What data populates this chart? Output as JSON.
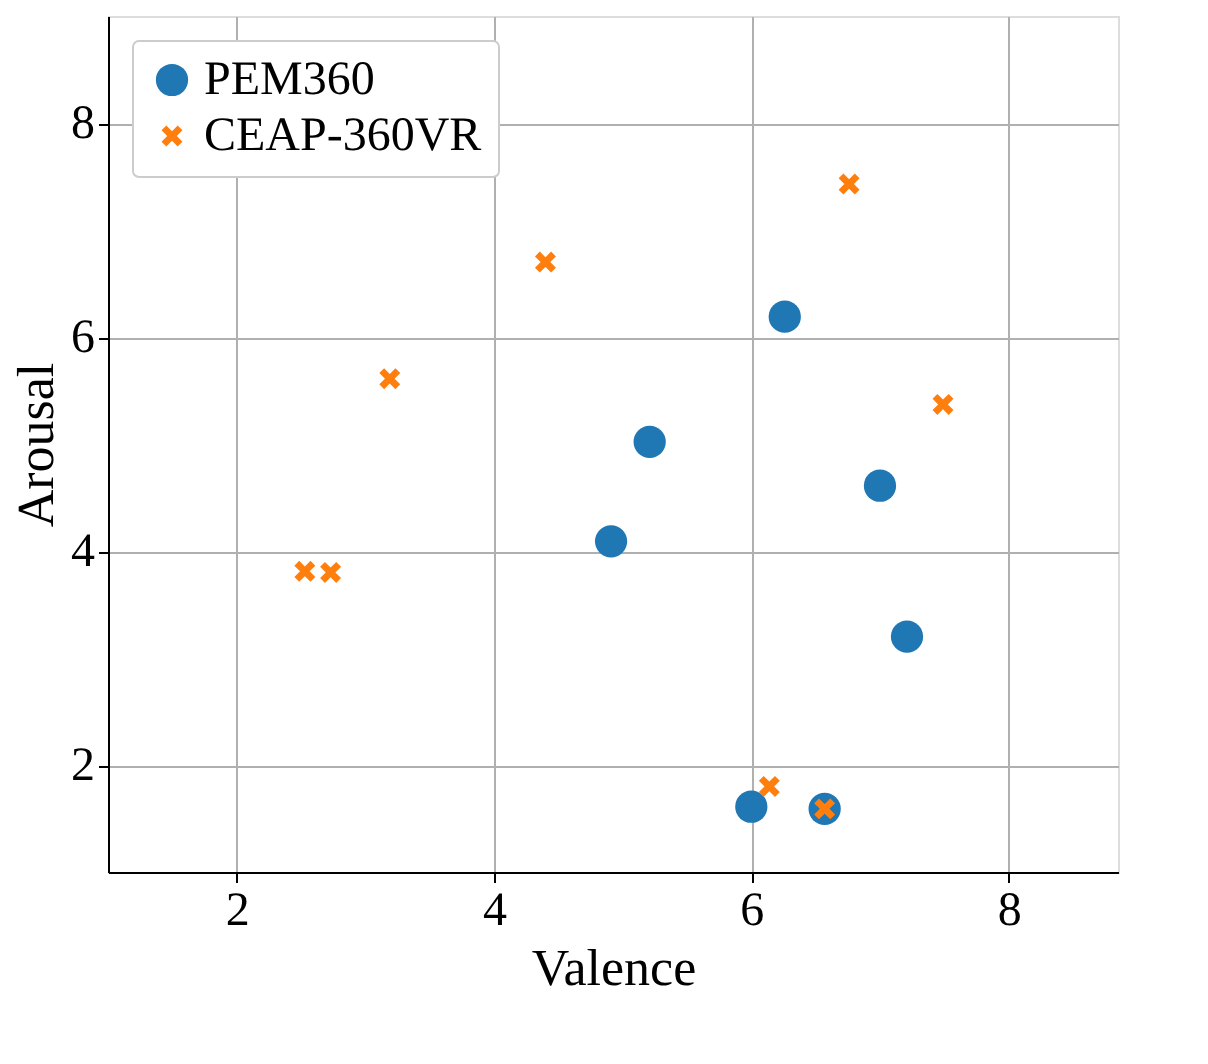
{
  "chart_data": {
    "type": "scatter",
    "xlabel": "Valence",
    "ylabel": "Arousal",
    "xlim": [
      1,
      8.85
    ],
    "ylim": [
      1,
      9
    ],
    "xticks": [
      2,
      4,
      6,
      8
    ],
    "yticks": [
      2,
      4,
      6,
      8
    ],
    "grid": true,
    "legend": "top left",
    "series": [
      {
        "name": "PEM360",
        "color": "#1f77b4",
        "marker": "circle",
        "x": [
          6.26,
          5.21,
          4.91,
          7.0,
          7.21,
          6.0,
          6.57
        ],
        "values": [
          6.19,
          5.02,
          4.09,
          4.61,
          3.2,
          1.61,
          1.59
        ]
      },
      {
        "name": "CEAP-360VR",
        "color": "#ff7f0e",
        "marker": "cross",
        "x": [
          6.76,
          4.4,
          3.19,
          7.49,
          2.53,
          2.73,
          6.14,
          6.57
        ],
        "values": [
          7.43,
          6.7,
          5.61,
          5.37,
          3.81,
          3.8,
          1.8,
          1.59
        ]
      }
    ]
  }
}
